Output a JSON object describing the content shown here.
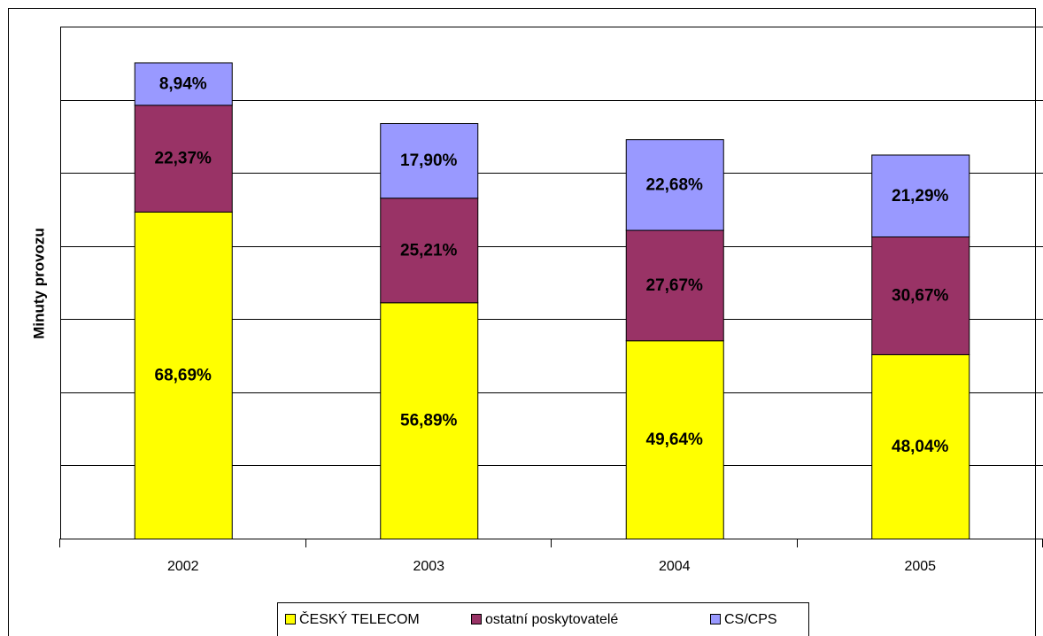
{
  "chart_data": {
    "type": "stacked_bar",
    "y_label": "Minuty provozu",
    "categories": [
      "2002",
      "2003",
      "2004",
      "2005"
    ],
    "ylim": [
      0,
      7
    ],
    "yticks": [
      0,
      1,
      2,
      3,
      4,
      5,
      6,
      7
    ],
    "grid": true,
    "legend_position": "bottom",
    "series": [
      {
        "name": "ČESKÝ TELECOM",
        "color": "#ffff00",
        "values": [
          4.47,
          3.23,
          2.71,
          2.52
        ],
        "value_labels": [
          "68,69%",
          "56,89%",
          "49,64%",
          "48,04%"
        ]
      },
      {
        "name": "ostatní poskytovatelé",
        "color": "#993366",
        "values": [
          1.46,
          1.43,
          1.51,
          1.61
        ],
        "value_labels": [
          "22,37%",
          "25,21%",
          "27,67%",
          "30,67%"
        ]
      },
      {
        "name": "CS/CPS",
        "color": "#9999ff",
        "values": [
          0.58,
          1.02,
          1.24,
          1.12
        ],
        "value_labels": [
          "8,94%",
          "17,90%",
          "22,68%",
          "21,29%"
        ]
      }
    ]
  }
}
